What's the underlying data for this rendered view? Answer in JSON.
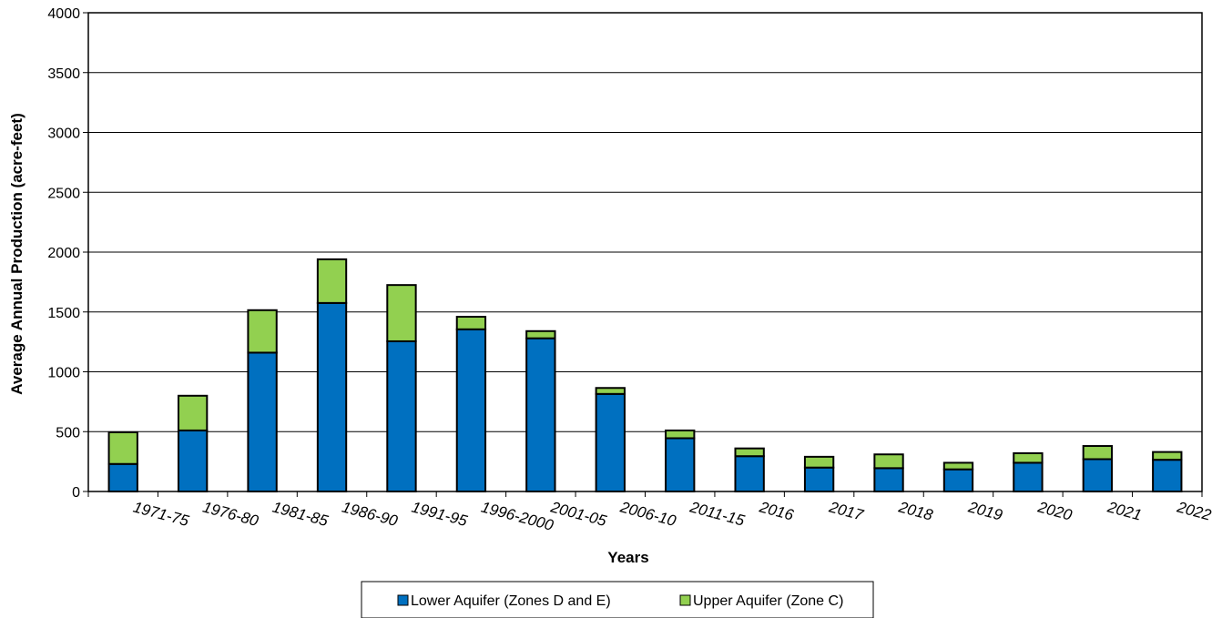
{
  "chart_data": {
    "type": "bar",
    "stacked": true,
    "title": "",
    "xlabel": "Years",
    "ylabel": "Average Annual Production (acre-feet)",
    "ylim": [
      0,
      4000
    ],
    "yticks": [
      0,
      500,
      1000,
      1500,
      2000,
      2500,
      3000,
      3500,
      4000
    ],
    "grid": "horizontal",
    "legend_position": "bottom",
    "categories": [
      "1971-75",
      "1976-80",
      "1981-85",
      "1986-90",
      "1991-95",
      "1996-2000",
      "2001-05",
      "2006-10",
      "2011-15",
      "2016",
      "2017",
      "2018",
      "2019",
      "2020",
      "2021",
      "2022"
    ],
    "series": [
      {
        "name": "Lower Aquifer (Zones D and E)",
        "color": "#0070C0",
        "values": [
          230,
          510,
          1160,
          1575,
          1255,
          1355,
          1280,
          815,
          445,
          295,
          200,
          195,
          185,
          240,
          270,
          265
        ]
      },
      {
        "name": "Upper Aquifer (Zone C)",
        "color": "#92D050",
        "values": [
          265,
          290,
          355,
          365,
          470,
          105,
          60,
          50,
          65,
          65,
          90,
          115,
          55,
          80,
          110,
          65
        ]
      }
    ]
  }
}
